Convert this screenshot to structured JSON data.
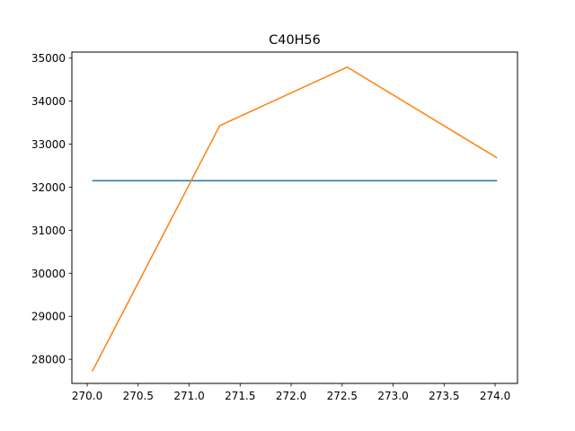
{
  "chart_data": {
    "type": "line",
    "title": "C40H56",
    "xlabel": "",
    "ylabel": "",
    "xlim": [
      269.85,
      274.22
    ],
    "ylim": [
      27440,
      35140
    ],
    "x_ticks": [
      270.0,
      270.5,
      271.0,
      271.5,
      272.0,
      272.5,
      273.0,
      273.5,
      274.0
    ],
    "x_tick_labels": [
      "270.0",
      "270.5",
      "271.0",
      "271.5",
      "272.0",
      "272.5",
      "273.0",
      "273.5",
      "274.0"
    ],
    "y_ticks": [
      28000,
      29000,
      30000,
      31000,
      32000,
      33000,
      34000,
      35000
    ],
    "y_tick_labels": [
      "28000",
      "29000",
      "30000",
      "31000",
      "32000",
      "33000",
      "34000",
      "35000"
    ],
    "grid": false,
    "series": [
      {
        "color": "#1f77b4",
        "x": [
          270.05,
          274.02
        ],
        "y": [
          32150,
          32150
        ]
      },
      {
        "color": "#ff7f0e",
        "x": [
          270.05,
          271.3,
          272.55,
          274.02
        ],
        "y": [
          27720,
          33430,
          34790,
          32680
        ]
      }
    ]
  }
}
